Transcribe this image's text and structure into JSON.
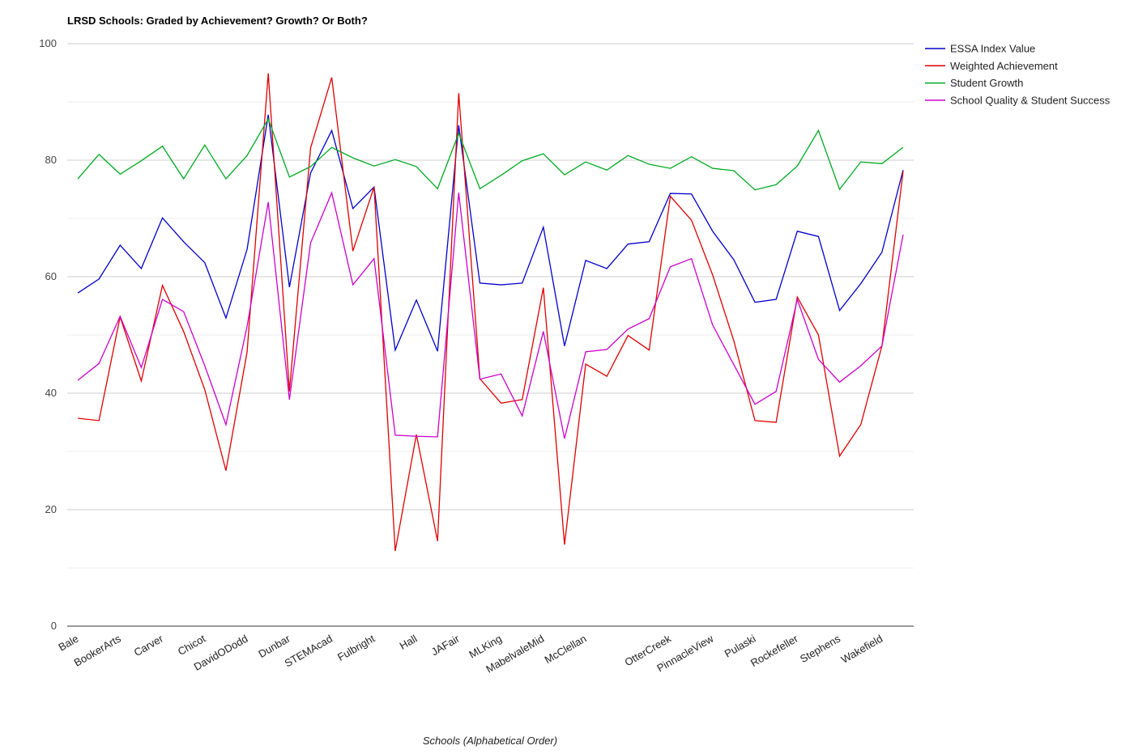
{
  "chart_data": {
    "type": "line",
    "title": "LRSD Schools: Graded by Achievement? Growth? Or Both?",
    "x_label": "Schools (Alphabetical Order)",
    "categories": [
      "Bale",
      null,
      "BookerArts",
      null,
      "Carver",
      null,
      "Chicot",
      null,
      "DavidODodd",
      null,
      "Dunbar",
      null,
      "STEMAcad",
      null,
      "Fulbright",
      null,
      "Hall",
      null,
      "JAFair",
      null,
      "MLKing",
      null,
      "MabelvaleMid",
      null,
      "McClellan",
      null,
      null,
      null,
      "OtterCreek",
      null,
      "PinnacleView",
      null,
      "Pulaski",
      null,
      "Rockefeller",
      null,
      "Stephens",
      null,
      "Wakefield",
      null
    ],
    "series": [
      {
        "name": "ESSA Index Value",
        "color": "#0000cc",
        "values": [
          57.2,
          59.6,
          65.4,
          61.4,
          70.1,
          66.0,
          62.4,
          52.9,
          64.7,
          87.8,
          58.2,
          77.8,
          85.1,
          71.7,
          75.4,
          47.4,
          56.0,
          47.2,
          86.0,
          58.9,
          58.6,
          58.9,
          68.5,
          48.1,
          62.8,
          61.4,
          65.6,
          66.0,
          74.3,
          74.2,
          67.8,
          62.9,
          55.6,
          56.1,
          67.8,
          66.9,
          54.2,
          58.8,
          64.2,
          78.3
        ]
      },
      {
        "name": "Weighted Achievement",
        "color": "#dd0000",
        "values": [
          35.7,
          35.3,
          53.1,
          42.1,
          58.5,
          50.6,
          40.6,
          26.7,
          47.1,
          94.9,
          40.3,
          82.1,
          94.2,
          64.4,
          75.4,
          12.9,
          32.9,
          14.6,
          91.5,
          42.5,
          38.3,
          38.9,
          58.1,
          14.0,
          45.0,
          42.9,
          49.9,
          47.4,
          73.8,
          69.7,
          60.3,
          49.0,
          35.3,
          35.0,
          56.5,
          50.0,
          29.2,
          34.6,
          48.1,
          78.1
        ]
      },
      {
        "name": "Student Growth",
        "color": "#00aa22",
        "values": [
          76.8,
          81.0,
          77.6,
          79.9,
          82.4,
          76.8,
          82.6,
          76.8,
          80.8,
          87.1,
          77.1,
          78.9,
          82.2,
          80.4,
          79.0,
          80.1,
          78.9,
          75.1,
          84.6,
          75.1,
          77.4,
          79.9,
          81.1,
          77.5,
          79.7,
          78.3,
          80.8,
          79.3,
          78.6,
          80.6,
          78.6,
          78.2,
          74.9,
          75.8,
          79.0,
          85.1,
          75.0,
          79.7,
          79.4,
          82.2
        ]
      },
      {
        "name": "School Quality & Student Success",
        "color": "#cc00cc",
        "values": [
          42.2,
          45.1,
          53.2,
          44.4,
          56.1,
          54.0,
          44.7,
          34.6,
          51.5,
          72.8,
          38.9,
          65.8,
          74.4,
          58.6,
          63.1,
          32.8,
          32.6,
          32.5,
          74.4,
          42.4,
          43.3,
          36.1,
          50.6,
          32.2,
          47.1,
          47.5,
          51.0,
          52.8,
          61.7,
          63.1,
          51.7,
          44.9,
          38.1,
          40.3,
          56.1,
          45.8,
          41.9,
          44.7,
          48.1,
          67.2
        ]
      }
    ],
    "ylim": [
      0,
      100
    ],
    "yticks": [
      0,
      20,
      40,
      60,
      80,
      100
    ],
    "minor_yticks": [
      10,
      30,
      50,
      70,
      90
    ],
    "grid": true,
    "legend": "right"
  }
}
